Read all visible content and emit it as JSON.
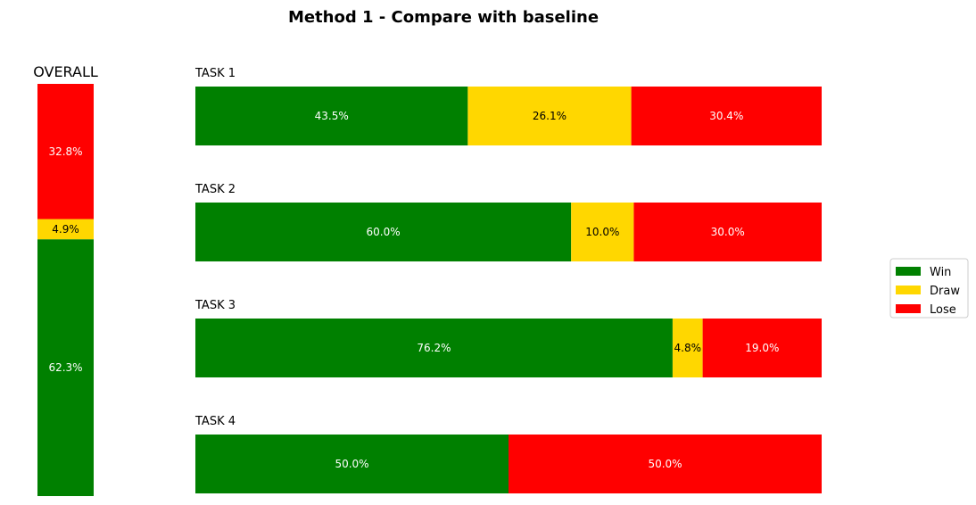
{
  "chart_data": {
    "type": "bar",
    "title": "Method 1 - Compare with baseline",
    "orientation_overall": "vertical-stacked",
    "orientation_tasks": "horizontal-stacked",
    "grid": false,
    "legend_position": "right",
    "series": [
      {
        "name": "Win",
        "color": "#008000",
        "label_color": "#ffffff"
      },
      {
        "name": "Draw",
        "color": "#ffd700",
        "label_color": "#000000"
      },
      {
        "name": "Lose",
        "color": "#ff0000",
        "label_color": "#ffffff"
      }
    ],
    "overall": {
      "title": "OVERALL",
      "values": [
        62.3,
        4.9,
        32.8
      ],
      "labels": [
        "62.3%",
        "4.9%",
        "32.8%"
      ]
    },
    "tasks": [
      {
        "title": "TASK 1",
        "values": [
          43.5,
          26.1,
          30.4
        ],
        "labels": [
          "43.5%",
          "26.1%",
          "30.4%"
        ]
      },
      {
        "title": "TASK 2",
        "values": [
          60.0,
          10.0,
          30.0
        ],
        "labels": [
          "60.0%",
          "10.0%",
          "30.0%"
        ]
      },
      {
        "title": "TASK 3",
        "values": [
          76.2,
          4.8,
          19.0
        ],
        "labels": [
          "76.2%",
          "4.8%",
          "19.0%"
        ]
      },
      {
        "title": "TASK 4",
        "values": [
          50.0,
          0,
          50.0
        ],
        "labels": [
          "50.0%",
          "",
          "50.0%"
        ]
      }
    ]
  }
}
